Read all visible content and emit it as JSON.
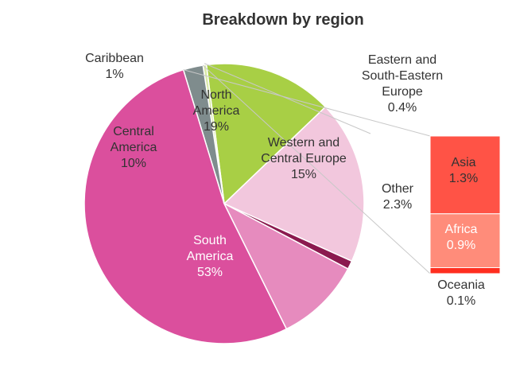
{
  "chart_data": {
    "type": "pie",
    "title": "Breakdown by region",
    "slices": [
      {
        "label": "Caribbean",
        "value": 1,
        "value_label": "1%",
        "color": "#8B1A4F"
      },
      {
        "label": "North America",
        "value": 19,
        "value_label": "19%",
        "color": "#F2C7DD"
      },
      {
        "label": "Western and Central Europe",
        "value": 15,
        "value_label": "15%",
        "color": "#A8CF45"
      },
      {
        "label": "Eastern and South-Eastern Europe",
        "value": 0.4,
        "value_label": "0.4%",
        "color": "#D8E8A8"
      },
      {
        "label": "Other",
        "value": 2.3,
        "value_label": "2.3%",
        "color": "#7F8C8D"
      },
      {
        "label": "South America",
        "value": 53,
        "value_label": "53%",
        "color": "#DB4F9D"
      },
      {
        "label": "Central America",
        "value": 10,
        "value_label": "10%",
        "color": "#E68BBE"
      }
    ],
    "breakdown": {
      "of": "Other",
      "segments": [
        {
          "label": "Asia",
          "value": 1.3,
          "value_label": "1.3%",
          "color": "#FF5346"
        },
        {
          "label": "Africa",
          "value": 0.9,
          "value_label": "0.9%",
          "color": "#FF8C7A"
        },
        {
          "label": "Oceania",
          "value": 0.1,
          "value_label": "0.1%",
          "color": "#FF2E1F"
        }
      ]
    }
  }
}
